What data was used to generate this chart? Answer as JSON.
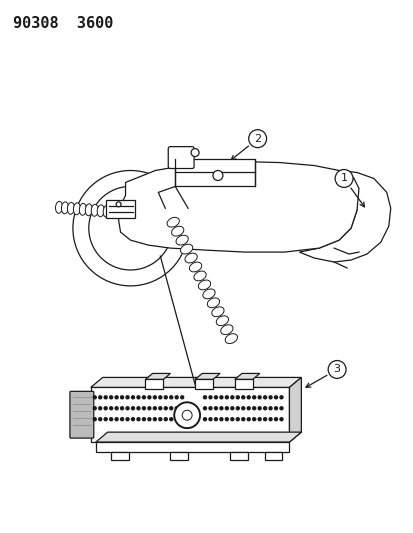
{
  "title_text": "90308  3600",
  "background_color": "#ffffff",
  "line_color": "#1a1a1a",
  "label1": "1",
  "label2": "2",
  "label3": "3",
  "figsize": [
    4.14,
    5.33
  ],
  "dpi": 100
}
